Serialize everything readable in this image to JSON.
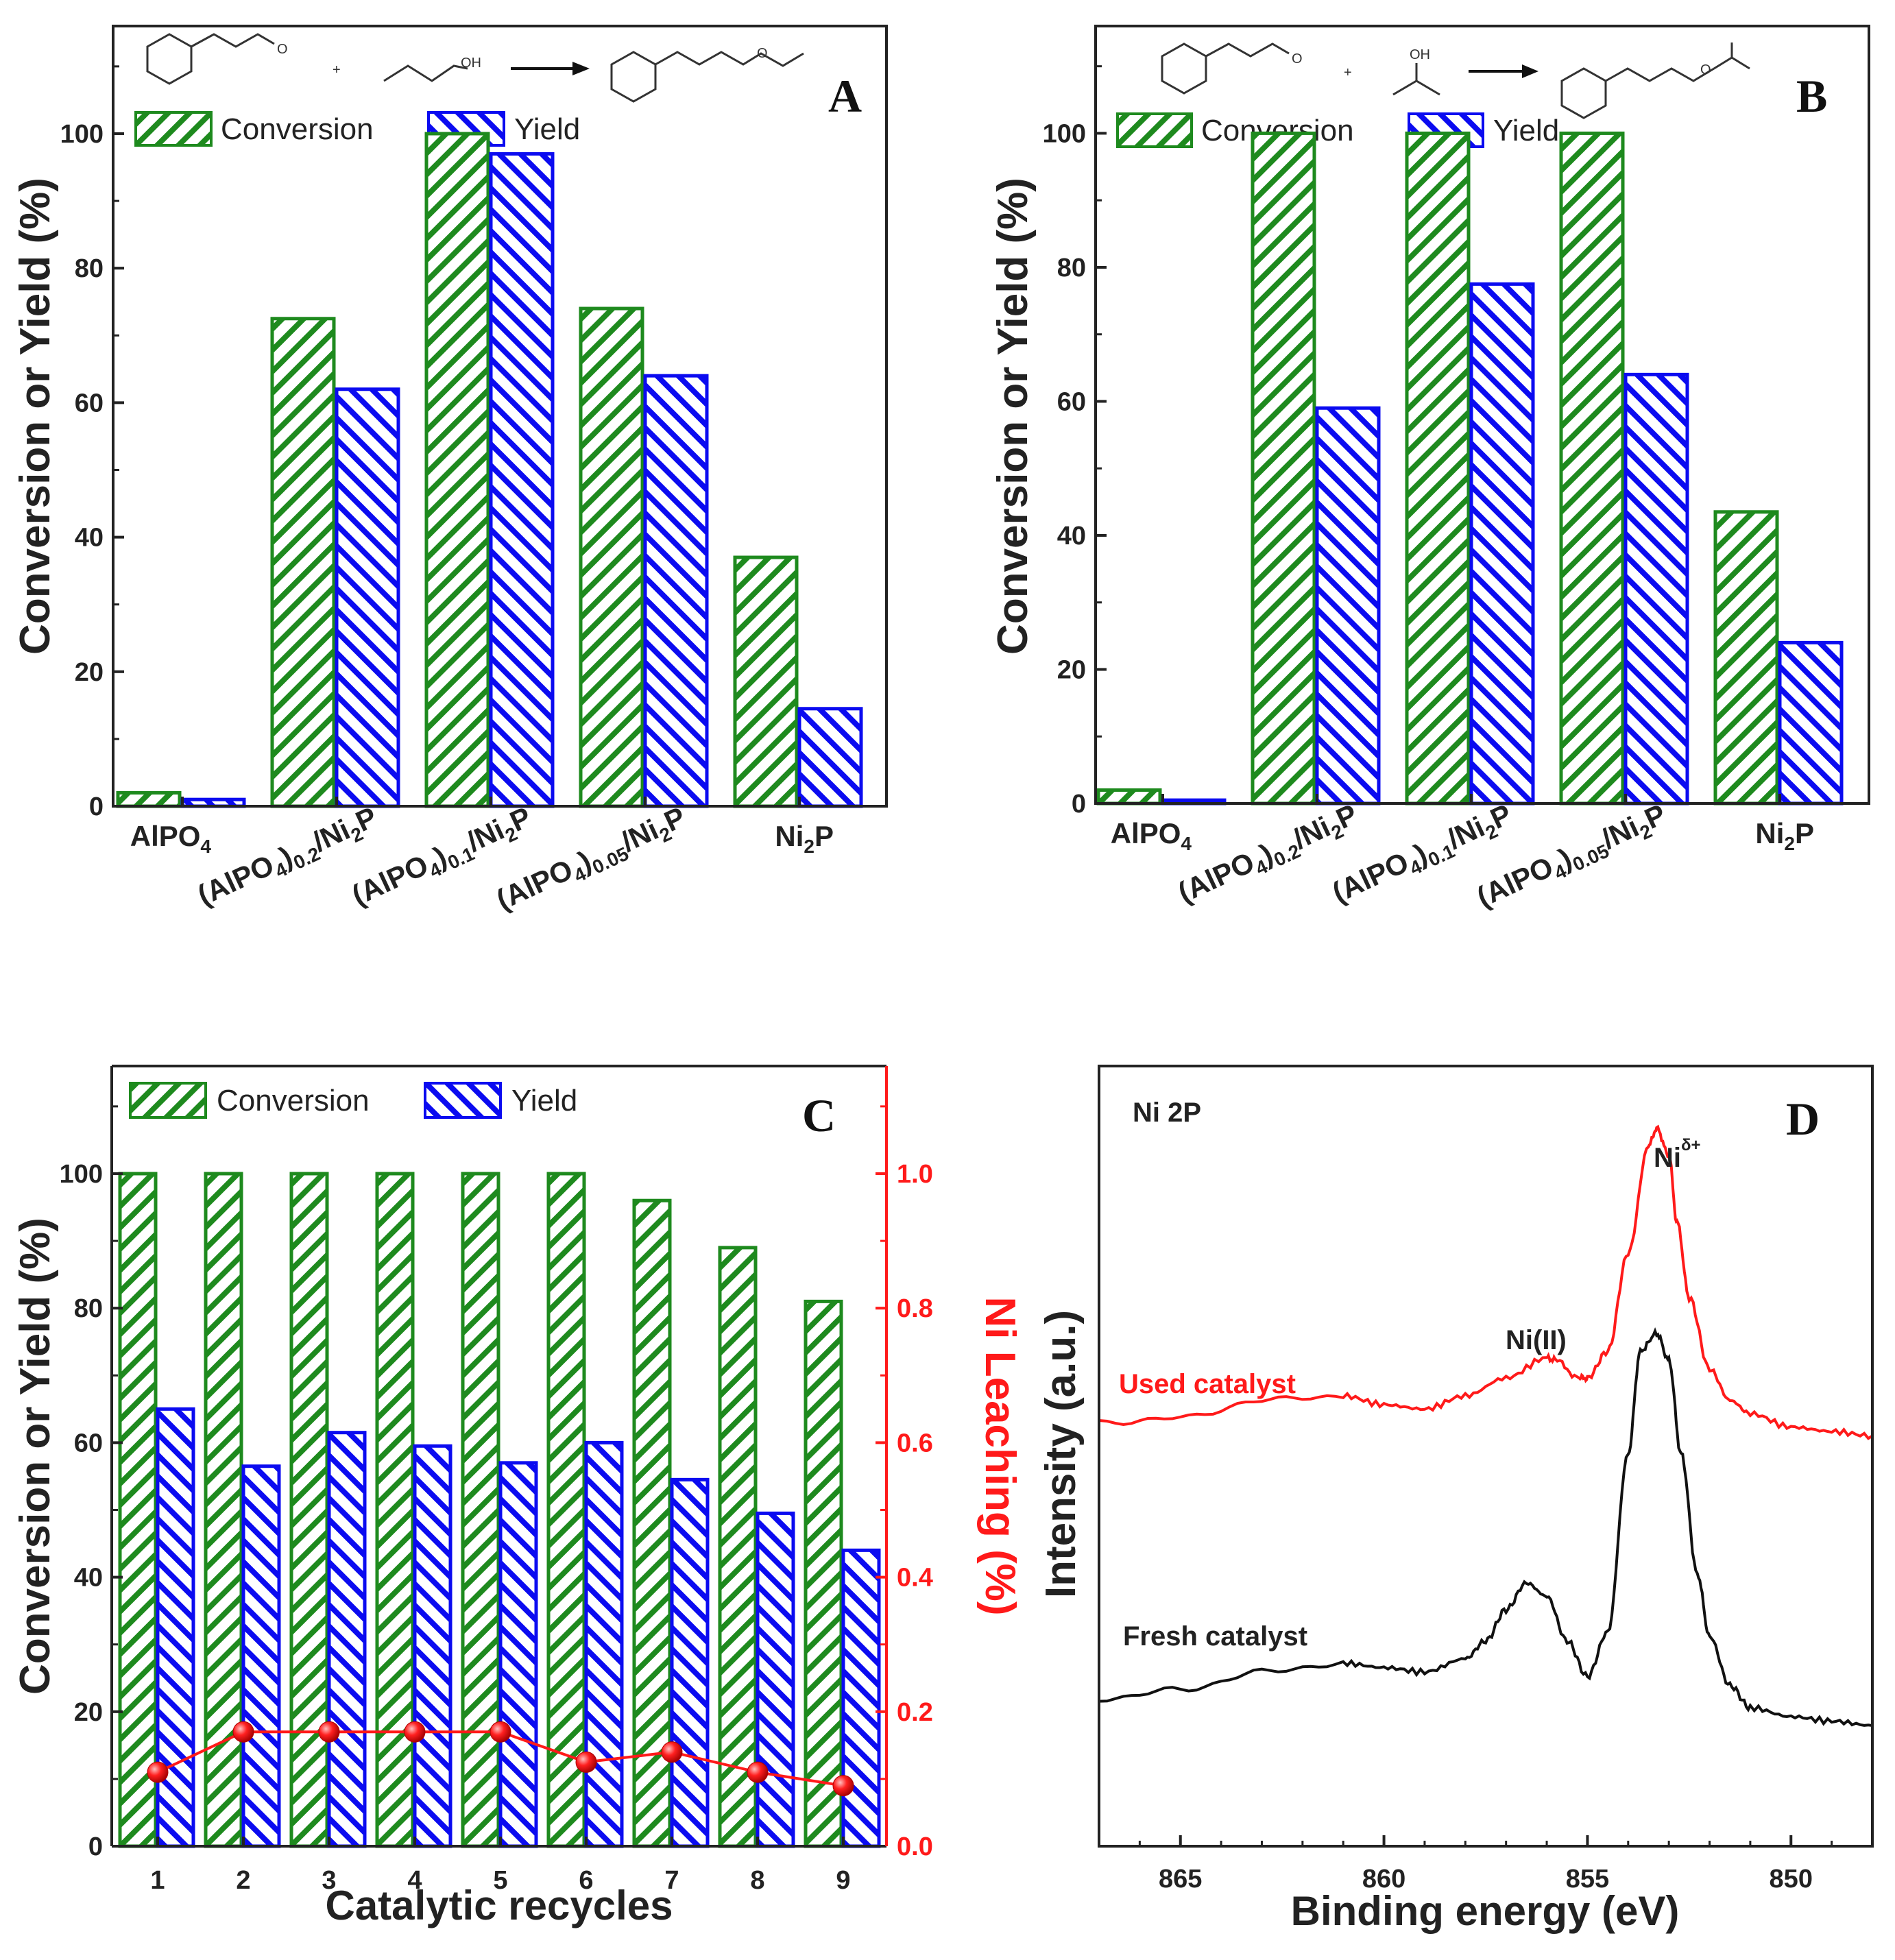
{
  "chart_data": [
    {
      "panel": "A",
      "type": "bar",
      "ylabel": "Conversion or Yield (%)",
      "ylim": [
        0,
        116
      ],
      "yticks": [
        0,
        20,
        40,
        60,
        80,
        100
      ],
      "categories": [
        {
          "label": "AlPO4",
          "parts": [
            [
              "AlPO",
              ""
            ],
            [
              "4",
              "sub"
            ]
          ]
        },
        {
          "label": "(AlPO4)0.2/Ni2P",
          "parts": [
            [
              "(AlPO",
              ""
            ],
            [
              "4",
              "sub"
            ],
            [
              ")",
              ""
            ],
            [
              "0.2",
              "sub"
            ],
            [
              "/Ni",
              ""
            ],
            [
              "2",
              "sub"
            ],
            [
              "P",
              ""
            ]
          ]
        },
        {
          "label": "(AlPO4)0.1/Ni2P",
          "parts": [
            [
              "(AlPO",
              ""
            ],
            [
              "4",
              "sub"
            ],
            [
              ")",
              ""
            ],
            [
              "0.1",
              "sub"
            ],
            [
              "/Ni",
              ""
            ],
            [
              "2",
              "sub"
            ],
            [
              "P",
              ""
            ]
          ]
        },
        {
          "label": "(AlPO4)0.05/Ni2P",
          "parts": [
            [
              "(AlPO",
              ""
            ],
            [
              "4",
              "sub"
            ],
            [
              ")",
              ""
            ],
            [
              "0.05",
              "sub"
            ],
            [
              "/Ni",
              ""
            ],
            [
              "2",
              "sub"
            ],
            [
              "P",
              ""
            ]
          ]
        },
        {
          "label": "Ni2P",
          "parts": [
            [
              "Ni",
              ""
            ],
            [
              "2",
              "sub"
            ],
            [
              "P",
              ""
            ]
          ]
        }
      ],
      "series": [
        {
          "name": "Conversion",
          "values": [
            2,
            72.5,
            100,
            74,
            37
          ]
        },
        {
          "name": "Yield",
          "values": [
            1,
            62,
            97,
            64,
            14.5
          ]
        }
      ],
      "reaction": {
        "reagent1": "O",
        "reagent2": "OH",
        "product": "O",
        "plus": "+"
      }
    },
    {
      "panel": "B",
      "type": "bar",
      "ylabel": "Conversion or Yield (%)",
      "ylim": [
        0,
        116
      ],
      "yticks": [
        0,
        20,
        40,
        60,
        80,
        100
      ],
      "categories": [
        {
          "label": "AlPO4",
          "parts": [
            [
              "AlPO",
              ""
            ],
            [
              "4",
              "sub"
            ]
          ]
        },
        {
          "label": "(AlPO4)0.2/Ni2P",
          "parts": [
            [
              "(AlPO",
              ""
            ],
            [
              "4",
              "sub"
            ],
            [
              ")",
              ""
            ],
            [
              "0.2",
              "sub"
            ],
            [
              "/Ni",
              ""
            ],
            [
              "2",
              "sub"
            ],
            [
              "P",
              ""
            ]
          ]
        },
        {
          "label": "(AlPO4)0.1/Ni2P",
          "parts": [
            [
              "(AlPO",
              ""
            ],
            [
              "4",
              "sub"
            ],
            [
              ")",
              ""
            ],
            [
              "0.1",
              "sub"
            ],
            [
              "/Ni",
              ""
            ],
            [
              "2",
              "sub"
            ],
            [
              "P",
              ""
            ]
          ]
        },
        {
          "label": "(AlPO4)0.05/Ni2P",
          "parts": [
            [
              "(AlPO",
              ""
            ],
            [
              "4",
              "sub"
            ],
            [
              ")",
              ""
            ],
            [
              "0.05",
              "sub"
            ],
            [
              "/Ni",
              ""
            ],
            [
              "2",
              "sub"
            ],
            [
              "P",
              ""
            ]
          ]
        },
        {
          "label": "Ni2P",
          "parts": [
            [
              "Ni",
              ""
            ],
            [
              "2",
              "sub"
            ],
            [
              "P",
              ""
            ]
          ]
        }
      ],
      "series": [
        {
          "name": "Conversion",
          "values": [
            2,
            100,
            100,
            100,
            43.5
          ]
        },
        {
          "name": "Yield",
          "values": [
            0.5,
            59,
            77.5,
            64,
            24
          ]
        }
      ],
      "reaction": {
        "reagent1": "O",
        "reagent2": "OH",
        "product": "O",
        "plus": "+"
      }
    },
    {
      "panel": "C",
      "type": "bar",
      "ylabel": "Conversion or Yield (%)",
      "y2label": "Ni Leaching (%)",
      "xlabel": "Catalytic recycles",
      "ylim": [
        0,
        116
      ],
      "y2lim": [
        0,
        1.16
      ],
      "yticks": [
        0,
        20,
        40,
        60,
        80,
        100
      ],
      "y2ticks": [
        "0.0",
        "0.2",
        "0.4",
        "0.6",
        "0.8",
        "1.0"
      ],
      "categories": [
        "1",
        "2",
        "3",
        "4",
        "5",
        "6",
        "7",
        "8",
        "9"
      ],
      "series": [
        {
          "name": "Conversion",
          "values": [
            100,
            100,
            100,
            100,
            100,
            100,
            96,
            89,
            81
          ]
        },
        {
          "name": "Yield",
          "values": [
            65,
            56.5,
            61.5,
            59.5,
            57,
            60,
            54.5,
            49.5,
            44
          ]
        },
        {
          "name": "Ni Leaching",
          "axis": "right",
          "values": [
            0.11,
            0.17,
            0.17,
            0.17,
            0.17,
            0.125,
            0.14,
            0.11,
            0.09
          ]
        }
      ]
    },
    {
      "panel": "D",
      "type": "line",
      "xlabel": "Binding energy (eV)",
      "ylabel": "Intensity (a.u.)",
      "xlim": [
        867,
        848
      ],
      "xticks": [
        865,
        860,
        855,
        850
      ],
      "title": "Ni 2P",
      "annotations": {
        "peak1": "Ni(II)",
        "peak2_base": "Ni",
        "peak2_sup": "δ+"
      },
      "series": [
        {
          "name": "Used catalyst",
          "color": "#ff1a1a",
          "offset": 0.62,
          "x": [
            867,
            865,
            863,
            861,
            860,
            859,
            858,
            857,
            856,
            855.8,
            855.2,
            855,
            854.5,
            854,
            853.5,
            853.3,
            853,
            852.8,
            852.5,
            852,
            851.5,
            851,
            850,
            849,
            848
          ],
          "y": [
            0.0,
            0.01,
            0.05,
            0.06,
            0.04,
            0.03,
            0.06,
            0.1,
            0.145,
            0.14,
            0.1,
            0.1,
            0.16,
            0.38,
            0.62,
            0.66,
            0.6,
            0.45,
            0.28,
            0.12,
            0.05,
            0.02,
            -0.01,
            -0.02,
            -0.03
          ]
        },
        {
          "name": "Fresh catalyst",
          "color": "#111111",
          "offset": 0.0,
          "x": [
            867,
            865,
            863,
            861,
            860,
            859,
            858,
            857.5,
            857,
            856.5,
            856,
            855.5,
            855,
            854.5,
            854,
            853.7,
            853.3,
            853,
            852.7,
            852.3,
            852,
            851.5,
            851,
            850,
            849,
            848
          ],
          "y": [
            0.0,
            0.02,
            0.06,
            0.08,
            0.07,
            0.06,
            0.09,
            0.13,
            0.2,
            0.26,
            0.23,
            0.13,
            0.05,
            0.15,
            0.55,
            0.78,
            0.82,
            0.76,
            0.55,
            0.28,
            0.14,
            0.03,
            -0.02,
            -0.04,
            -0.05,
            -0.06
          ]
        }
      ]
    }
  ],
  "legend": {
    "conversion": "Conversion",
    "yield": "Yield"
  },
  "colors": {
    "green": "#1e8a1e",
    "blue": "#0b0bf0",
    "red": "#ff1a1a",
    "axis": "#222222"
  }
}
